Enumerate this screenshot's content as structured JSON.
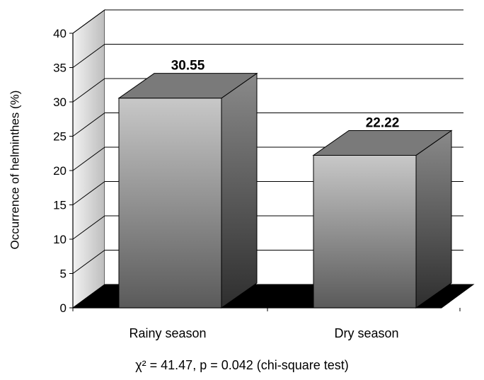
{
  "chart_data": {
    "type": "bar",
    "style": "3d",
    "categories": [
      "Rainy season",
      "Dry season"
    ],
    "values": [
      30.55,
      22.22
    ],
    "data_labels": [
      "30.55",
      "22.22"
    ],
    "ylabel": "Occurrence of helminthes (%)",
    "xlabel": "",
    "ylim": [
      0,
      40
    ],
    "yticks": [
      "0",
      "5",
      "10",
      "15",
      "20",
      "25",
      "30",
      "35",
      "40"
    ],
    "grid": true,
    "legend": "none",
    "colors": {
      "bar_light": "#c8c8c8",
      "bar_dark": "#5a5a5a",
      "floor": "#000000",
      "wall": "#d9d9d9"
    }
  },
  "footnote": "χ² = 41.47, p = 0.042 (chi-square test)"
}
